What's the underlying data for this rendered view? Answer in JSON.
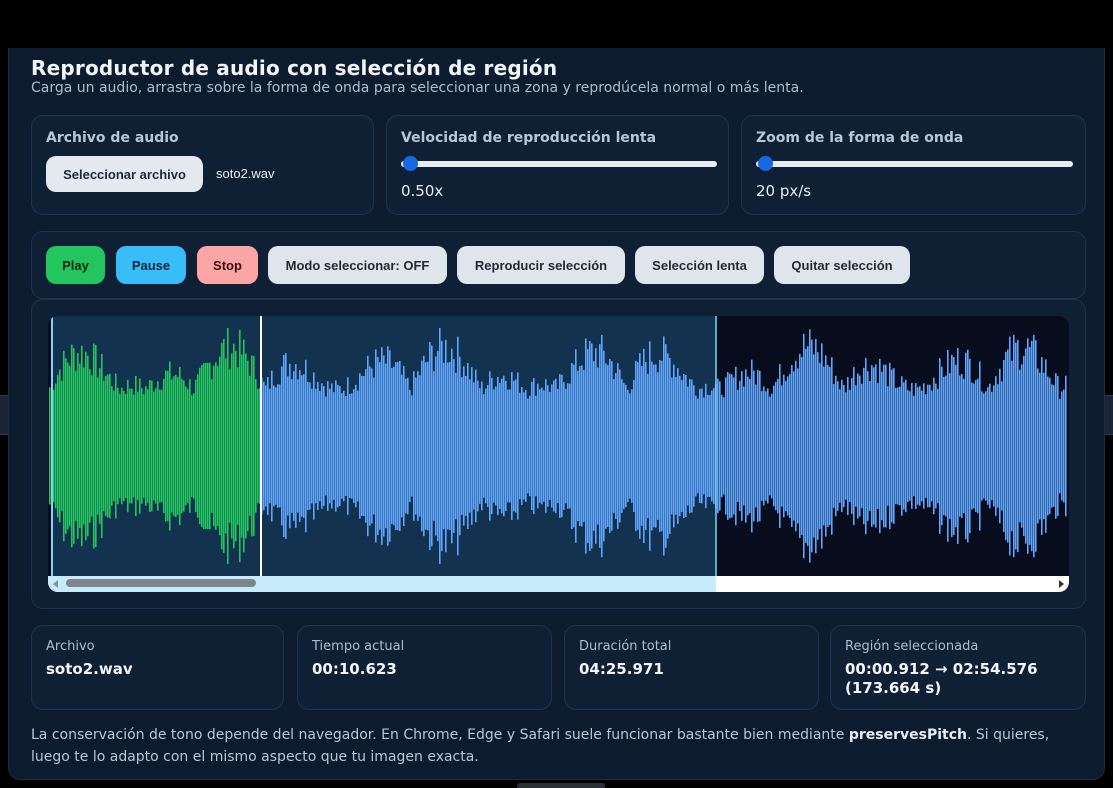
{
  "header": {
    "title": "Reproductor de audio con selección de región",
    "subtitle": "Carga un audio, arrastra sobre la forma de onda para seleccionar una zona y reprodúcela normal o más lenta."
  },
  "file_card": {
    "label": "Archivo de audio",
    "button_label": "Seleccionar archivo",
    "file_name": "soto2.wav"
  },
  "speed_card": {
    "label": "Velocidad de reproducción lenta",
    "value_text": "0.50x",
    "slider_fraction": 0.0
  },
  "zoom_card": {
    "label": "Zoom de la forma de onda",
    "value_text": "20 px/s",
    "slider_fraction": 0.0
  },
  "toolbar": {
    "play": "Play",
    "pause": "Pause",
    "stop": "Stop",
    "select_mode": "Modo seleccionar: OFF",
    "play_selection": "Reproducir selección",
    "slow_selection": "Selección lenta",
    "clear_selection": "Quitar selección"
  },
  "waveform": {
    "played_color": "#22c55e",
    "unplayed_color": "#60a5fa",
    "selection_color": "#13324f",
    "cursor_color": "#ffffff"
  },
  "stats": {
    "file": {
      "label": "Archivo",
      "value": "soto2.wav"
    },
    "current_time": {
      "label": "Tiempo actual",
      "value": "00:10.623"
    },
    "duration": {
      "label": "Duración total",
      "value": "04:25.971"
    },
    "region": {
      "label": "Región seleccionada",
      "value": "00:00.912 → 02:54.576",
      "value2": "(173.664 s)"
    }
  },
  "note": {
    "text_before": "La conservación de tono depende del navegador. En Chrome, Edge y Safari suele funcionar bastante bien mediante ",
    "bold": "preservesPitch",
    "text_after": ". Si quieres, luego te lo adapto con el mismo aspecto que tu imagen exacta."
  }
}
